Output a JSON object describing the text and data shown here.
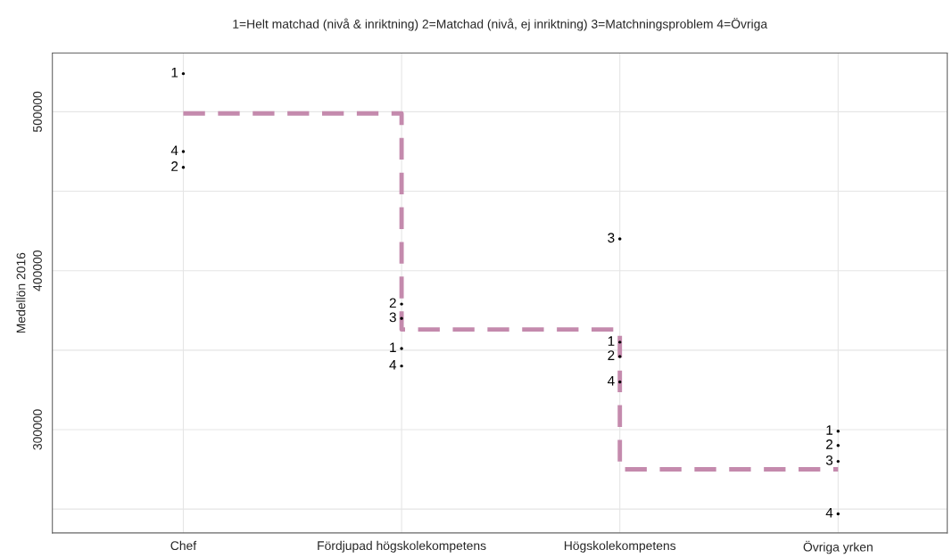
{
  "chart_data": {
    "type": "scatter",
    "title": "1=Helt matchad (nivå & inriktning) 2=Matchad (nivå, ej inriktning) 3=Matchningsproblem 4=Övriga",
    "ylabel": "Medellön 2016",
    "categories": [
      "Chef",
      "Fördjupad högskolekompetens",
      "Högskolekompetens",
      "Övriga yrken"
    ],
    "ylim": [
      235000,
      537000
    ],
    "yticks": [
      {
        "value": 250000,
        "label": null
      },
      300000,
      {
        "value": 350000,
        "label": null
      },
      400000,
      {
        "value": 450000,
        "label": null
      },
      500000
    ],
    "grid": true,
    "series": [
      {
        "type": "step",
        "color": "#c48aad",
        "line_style": "dashed",
        "values": [
          499000,
          363000,
          275000,
          275000
        ]
      },
      {
        "name": "1",
        "color": "#000000",
        "values": [
          524000,
          351000,
          355000,
          299000
        ]
      },
      {
        "name": "2",
        "color": "#000000",
        "values": [
          465000,
          379000,
          346000,
          290000
        ]
      },
      {
        "name": "3",
        "color": "#000000",
        "values": [
          null,
          370000,
          420000,
          280000
        ]
      },
      {
        "name": "4",
        "color": "#000000",
        "values": [
          475000,
          340000,
          330000,
          247000
        ]
      }
    ]
  }
}
